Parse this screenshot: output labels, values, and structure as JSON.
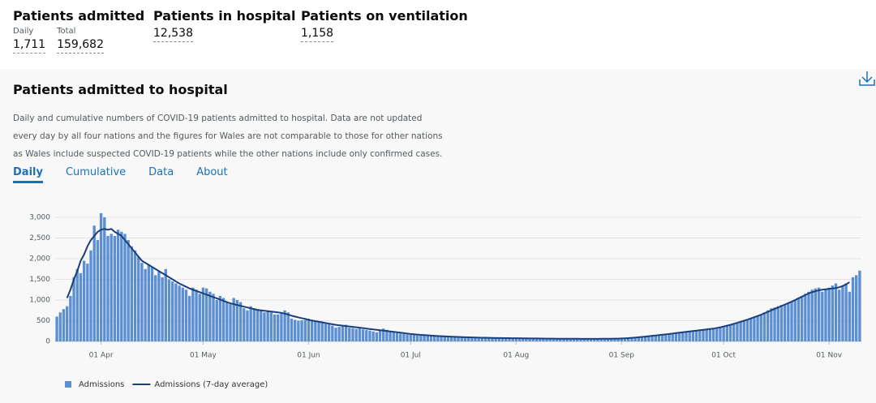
{
  "header": {
    "stats": [
      {
        "title": "Patients admitted",
        "items": [
          {
            "label": "Daily",
            "value": "1,711"
          },
          {
            "label": "Total",
            "value": "159,682"
          }
        ]
      },
      {
        "title": "Patients in hospital",
        "items": [
          {
            "value": "12,538"
          }
        ]
      },
      {
        "title": "Patients on ventilation",
        "items": [
          {
            "value": "1,158"
          }
        ]
      }
    ]
  },
  "card": {
    "title": "Patients admitted to hospital",
    "description": "Daily and cumulative numbers of COVID-19 patients admitted to hospital. Data are not updated every day by all four nations and the figures for Wales are not comparable to those for other nations as Wales include suspected COVID-19 patients while the other nations include only confirmed cases.",
    "tabs": [
      "Daily",
      "Cumulative",
      "Data",
      "About"
    ]
  },
  "chart_data": {
    "type": "bar-line",
    "categories": [
      null,
      null,
      null,
      null,
      null,
      null,
      null,
      null,
      null,
      null,
      null,
      null,
      null,
      "01 Apr",
      null,
      null,
      null,
      null,
      null,
      null,
      null,
      null,
      null,
      null,
      null,
      null,
      null,
      null,
      null,
      null,
      null,
      null,
      null,
      null,
      null,
      null,
      null,
      null,
      null,
      null,
      null,
      null,
      null,
      "01 May",
      null,
      null,
      null,
      null,
      null,
      null,
      null,
      null,
      null,
      null,
      null,
      null,
      null,
      null,
      null,
      null,
      null,
      null,
      null,
      null,
      null,
      null,
      null,
      null,
      null,
      null,
      null,
      null,
      null,
      null,
      "01 Jun",
      null,
      null,
      null,
      null,
      null,
      null,
      null,
      null,
      null,
      null,
      null,
      null,
      null,
      null,
      null,
      null,
      null,
      null,
      null,
      null,
      null,
      null,
      null,
      null,
      null,
      null,
      null,
      null,
      null,
      "01 Jul",
      null,
      null,
      null,
      null,
      null,
      null,
      null,
      null,
      null,
      null,
      null,
      null,
      null,
      null,
      null,
      null,
      null,
      null,
      null,
      null,
      null,
      null,
      null,
      null,
      null,
      null,
      null,
      null,
      null,
      null,
      "01 Aug",
      null,
      null,
      null,
      null,
      null,
      null,
      null,
      null,
      null,
      null,
      null,
      null,
      null,
      null,
      null,
      null,
      null,
      null,
      null,
      null,
      null,
      null,
      null,
      null,
      null,
      null,
      null,
      null,
      null,
      null,
      "01 Sep",
      null,
      null,
      null,
      null,
      null,
      null,
      null,
      null,
      null,
      null,
      null,
      null,
      null,
      null,
      null,
      null,
      null,
      null,
      null,
      null,
      null,
      null,
      null,
      null,
      null,
      null,
      null,
      null,
      null,
      "01 Oct",
      null,
      null,
      null,
      null,
      null,
      null,
      null,
      null,
      null,
      null,
      null,
      null,
      null,
      null,
      null,
      null,
      null,
      null,
      null,
      null,
      null,
      null,
      null,
      null,
      null,
      null,
      null,
      null,
      null,
      null,
      "01 Nov",
      null,
      null,
      null,
      null,
      null,
      null,
      null,
      null,
      null
    ],
    "series": [
      {
        "name": "Admissions",
        "type": "bar",
        "color": "#5b8fd1",
        "values": [
          600,
          700,
          780,
          850,
          1100,
          1550,
          1750,
          1650,
          1950,
          1880,
          2200,
          2800,
          2450,
          3100,
          3000,
          2550,
          2600,
          2550,
          2700,
          2650,
          2600,
          2450,
          2300,
          2200,
          2050,
          1900,
          1750,
          1850,
          1800,
          1600,
          1700,
          1550,
          1750,
          1500,
          1450,
          1400,
          1350,
          1300,
          1250,
          1100,
          1300,
          1250,
          1150,
          1300,
          1280,
          1200,
          1150,
          1000,
          1100,
          1050,
          950,
          900,
          1050,
          1000,
          950,
          800,
          750,
          850,
          800,
          780,
          750,
          700,
          720,
          700,
          650,
          650,
          700,
          750,
          700,
          550,
          520,
          500,
          510,
          520,
          550,
          500,
          480,
          470,
          450,
          430,
          420,
          380,
          330,
          350,
          370,
          400,
          330,
          320,
          300,
          310,
          290,
          280,
          260,
          240,
          220,
          260,
          310,
          280,
          250,
          230,
          200,
          190,
          180,
          170,
          160,
          170,
          160,
          150,
          140,
          150,
          140,
          130,
          130,
          120,
          120,
          115,
          110,
          110,
          100,
          105,
          100,
          95,
          95,
          90,
          90,
          85,
          85,
          85,
          80,
          80,
          80,
          80,
          80,
          85,
          80,
          75,
          75,
          70,
          70,
          70,
          70,
          70,
          70,
          65,
          65,
          65,
          65,
          70,
          65,
          60,
          60,
          60,
          60,
          60,
          60,
          60,
          60,
          60,
          60,
          60,
          65,
          65,
          65,
          65,
          65,
          70,
          75,
          80,
          85,
          90,
          100,
          100,
          110,
          120,
          130,
          140,
          150,
          160,
          170,
          180,
          190,
          200,
          210,
          220,
          230,
          240,
          250,
          260,
          270,
          280,
          290,
          290,
          300,
          310,
          320,
          330,
          350,
          380,
          400,
          420,
          450,
          480,
          500,
          520,
          560,
          600,
          620,
          650,
          700,
          750,
          800,
          820,
          850,
          880,
          900,
          920,
          950,
          1000,
          1050,
          1100,
          1150,
          1200,
          1250,
          1280,
          1300,
          1200,
          1250,
          1300,
          1350,
          1400,
          1250,
          1350,
          1400,
          1200,
          1550,
          1600,
          1711
        ]
      },
      {
        "name": "Admissions (7-day average)",
        "type": "line",
        "color": "#1b3f7c",
        "values": [
          null,
          null,
          null,
          1050,
          1250,
          1500,
          1700,
          1950,
          2100,
          2300,
          2450,
          2550,
          2650,
          2700,
          2720,
          2700,
          2720,
          2650,
          2600,
          2550,
          2450,
          2350,
          2250,
          2150,
          2050,
          1950,
          1900,
          1850,
          1800,
          1750,
          1700,
          1650,
          1600,
          1550,
          1500,
          1450,
          1400,
          1360,
          1320,
          1280,
          1250,
          1220,
          1190,
          1160,
          1130,
          1100,
          1070,
          1040,
          1010,
          980,
          950,
          920,
          900,
          880,
          860,
          840,
          820,
          800,
          780,
          760,
          750,
          740,
          730,
          720,
          710,
          700,
          690,
          670,
          650,
          620,
          600,
          580,
          560,
          545,
          520,
          505,
          490,
          475,
          460,
          445,
          430,
          415,
          400,
          390,
          380,
          370,
          360,
          350,
          340,
          330,
          320,
          310,
          300,
          290,
          280,
          270,
          260,
          250,
          240,
          230,
          220,
          210,
          200,
          190,
          180,
          172,
          165,
          158,
          152,
          146,
          140,
          135,
          130,
          126,
          122,
          118,
          114,
          110,
          107,
          104,
          101,
          98,
          95,
          93,
          91,
          89,
          87,
          85,
          83,
          82,
          81,
          80,
          79,
          78,
          77,
          76,
          75,
          74,
          73,
          72,
          71,
          70,
          69,
          68,
          67,
          66,
          66,
          65,
          65,
          64,
          64,
          63,
          63,
          63,
          62,
          62,
          62,
          62,
          62,
          62,
          63,
          63,
          64,
          65,
          66,
          67,
          70,
          74,
          79,
          85,
          92,
          100,
          108,
          116,
          125,
          134,
          143,
          152,
          161,
          170,
          180,
          190,
          200,
          210,
          220,
          230,
          240,
          250,
          260,
          270,
          280,
          290,
          300,
          310,
          325,
          340,
          360,
          380,
          400,
          425,
          450,
          475,
          500,
          525,
          555,
          585,
          615,
          645,
          680,
          715,
          750,
          785,
          820,
          855,
          890,
          925,
          960,
          1000,
          1040,
          1080,
          1120,
          1160,
          1190,
          1215,
          1235,
          1250,
          1260,
          1270,
          1280,
          1290,
          1310,
          1340,
          1380,
          1430,
          null,
          null,
          null
        ]
      }
    ],
    "ylim": [
      0,
      3200
    ],
    "yticks": [
      0,
      500,
      {
        "value": 1000,
        "label": "1,000"
      },
      {
        "value": 1500,
        "label": "1,500"
      },
      {
        "value": 2000,
        "label": "2,000"
      },
      {
        "value": 2500,
        "label": "2,500"
      },
      {
        "value": 3000,
        "label": "3,000"
      }
    ],
    "grid": true
  }
}
